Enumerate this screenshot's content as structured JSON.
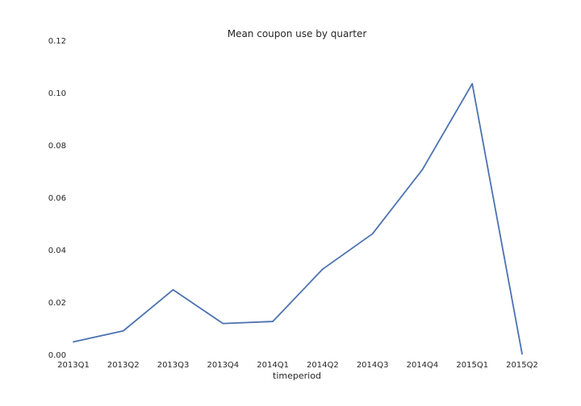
{
  "chart_data": {
    "type": "line",
    "title": "Mean coupon use by quarter",
    "xlabel": "timeperiod",
    "ylabel": "",
    "categories": [
      "2013Q1",
      "2013Q2",
      "2013Q3",
      "2013Q4",
      "2014Q1",
      "2014Q2",
      "2014Q3",
      "2014Q4",
      "2015Q1",
      "2015Q2"
    ],
    "series": [
      {
        "values": [
          0.0048,
          0.009,
          0.0247,
          0.0118,
          0.0126,
          0.0326,
          0.0461,
          0.0706,
          0.1034,
          0.0002
        ],
        "color": "#4c72b0"
      }
    ],
    "ylim": [
      0,
      0.12
    ],
    "yticks": [
      "0.00",
      "0.02",
      "0.04",
      "0.06",
      "0.08",
      "0.10",
      "0.12"
    ],
    "grid": false,
    "background": "#ffffff"
  }
}
